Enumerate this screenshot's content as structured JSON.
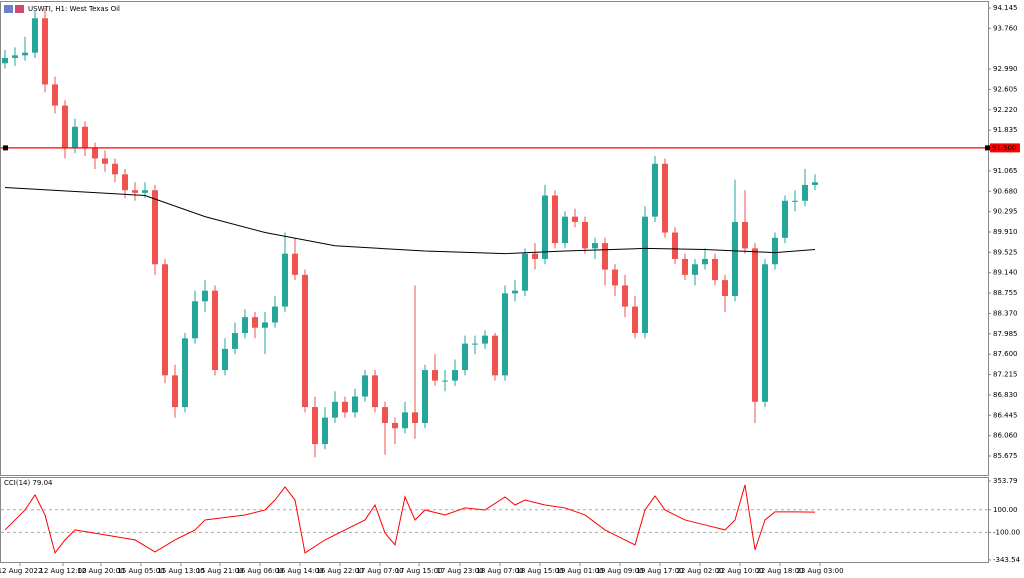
{
  "chart_data": [
    {
      "type": "candlestick",
      "title": "USWTI, H1: West Texas Oil",
      "bull_color": "#26a69a",
      "bear_color": "#ef5350",
      "candles": [
        [
          93.1,
          93.35,
          93.0,
          93.2
        ],
        [
          93.2,
          93.4,
          93.05,
          93.25
        ],
        [
          93.25,
          93.6,
          93.15,
          93.3
        ],
        [
          93.3,
          94.1,
          93.2,
          93.95
        ],
        [
          93.95,
          94.15,
          92.55,
          92.7
        ],
        [
          92.7,
          92.85,
          92.15,
          92.3
        ],
        [
          92.3,
          92.4,
          91.3,
          91.5
        ],
        [
          91.5,
          92.05,
          91.4,
          91.9
        ],
        [
          91.9,
          92.0,
          91.35,
          91.5
        ],
        [
          91.5,
          91.6,
          91.1,
          91.3
        ],
        [
          91.3,
          91.45,
          91.05,
          91.2
        ],
        [
          91.2,
          91.3,
          90.85,
          91.0
        ],
        [
          91.0,
          91.1,
          90.55,
          90.7
        ],
        [
          90.7,
          90.85,
          90.5,
          90.65
        ],
        [
          90.65,
          90.85,
          90.55,
          90.7
        ],
        [
          90.7,
          90.8,
          89.1,
          89.3
        ],
        [
          89.3,
          89.4,
          87.05,
          87.2
        ],
        [
          87.2,
          87.4,
          86.4,
          86.6
        ],
        [
          86.6,
          88.0,
          86.5,
          87.9
        ],
        [
          87.9,
          88.8,
          87.8,
          88.6
        ],
        [
          88.6,
          89.0,
          88.4,
          88.8
        ],
        [
          88.8,
          88.9,
          87.2,
          87.3
        ],
        [
          87.3,
          87.9,
          87.2,
          87.7
        ],
        [
          87.7,
          88.2,
          87.6,
          88.0
        ],
        [
          88.0,
          88.45,
          87.9,
          88.3
        ],
        [
          88.3,
          88.4,
          87.9,
          88.1
        ],
        [
          88.1,
          88.4,
          87.6,
          88.2
        ],
        [
          88.2,
          88.7,
          88.1,
          88.5
        ],
        [
          88.5,
          89.9,
          88.4,
          89.5
        ],
        [
          89.5,
          89.8,
          89.0,
          89.1
        ],
        [
          89.1,
          89.2,
          86.5,
          86.6
        ],
        [
          86.6,
          86.8,
          85.65,
          85.9
        ],
        [
          85.9,
          86.6,
          85.8,
          86.4
        ],
        [
          86.4,
          86.9,
          86.3,
          86.7
        ],
        [
          86.7,
          86.8,
          86.4,
          86.5
        ],
        [
          86.5,
          86.95,
          86.4,
          86.8
        ],
        [
          86.8,
          87.3,
          86.7,
          87.2
        ],
        [
          87.2,
          87.3,
          86.5,
          86.6
        ],
        [
          86.6,
          86.7,
          85.7,
          86.3
        ],
        [
          86.3,
          86.4,
          85.9,
          86.2
        ],
        [
          86.2,
          86.7,
          86.1,
          86.5
        ],
        [
          86.5,
          88.9,
          86.0,
          86.3
        ],
        [
          86.3,
          87.4,
          86.2,
          87.3
        ],
        [
          87.3,
          87.6,
          87.0,
          87.1
        ],
        [
          87.1,
          87.3,
          86.9,
          87.1
        ],
        [
          87.1,
          87.5,
          87.0,
          87.3
        ],
        [
          87.3,
          87.95,
          87.2,
          87.8
        ],
        [
          87.8,
          87.95,
          87.6,
          87.8
        ],
        [
          87.8,
          88.05,
          87.7,
          87.95
        ],
        [
          87.95,
          88.0,
          87.1,
          87.2
        ],
        [
          87.2,
          88.9,
          87.1,
          88.75
        ],
        [
          88.75,
          89.0,
          88.6,
          88.8
        ],
        [
          88.8,
          89.6,
          88.7,
          89.5
        ],
        [
          89.5,
          89.7,
          89.2,
          89.4
        ],
        [
          89.4,
          90.8,
          89.3,
          90.6
        ],
        [
          90.6,
          90.7,
          89.6,
          89.7
        ],
        [
          89.7,
          90.3,
          89.6,
          90.2
        ],
        [
          90.2,
          90.35,
          90.0,
          90.1
        ],
        [
          90.1,
          90.2,
          89.5,
          89.6
        ],
        [
          89.6,
          89.8,
          89.4,
          89.7
        ],
        [
          89.7,
          89.8,
          88.9,
          89.2
        ],
        [
          89.2,
          89.3,
          88.7,
          88.9
        ],
        [
          88.9,
          89.1,
          88.3,
          88.5
        ],
        [
          88.5,
          88.7,
          87.9,
          88.0
        ],
        [
          88.0,
          90.4,
          87.9,
          90.2
        ],
        [
          90.2,
          91.35,
          90.1,
          91.2
        ],
        [
          91.2,
          91.3,
          89.8,
          89.9
        ],
        [
          89.9,
          90.0,
          89.3,
          89.4
        ],
        [
          89.4,
          89.5,
          89.0,
          89.1
        ],
        [
          89.1,
          89.4,
          88.9,
          89.3
        ],
        [
          89.3,
          89.6,
          89.2,
          89.4
        ],
        [
          89.4,
          89.5,
          88.9,
          89.0
        ],
        [
          89.0,
          89.1,
          88.4,
          88.7
        ],
        [
          88.7,
          90.9,
          88.6,
          90.1
        ],
        [
          90.1,
          90.7,
          89.5,
          89.6
        ],
        [
          89.6,
          89.7,
          86.3,
          86.7
        ],
        [
          86.7,
          89.4,
          86.6,
          89.3
        ],
        [
          89.3,
          89.9,
          89.2,
          89.8
        ],
        [
          89.8,
          90.6,
          89.7,
          90.5
        ],
        [
          90.5,
          90.7,
          90.3,
          90.5
        ],
        [
          90.5,
          91.1,
          90.4,
          90.8
        ],
        [
          90.8,
          91.0,
          90.7,
          90.85
        ]
      ],
      "ma": {
        "color": "#000000",
        "x": [
          0,
          14,
          20,
          26,
          33,
          42,
          50,
          56,
          64,
          70,
          77,
          81
        ],
        "values": [
          90.75,
          90.6,
          90.2,
          89.9,
          89.65,
          89.55,
          89.5,
          89.55,
          89.6,
          89.58,
          89.52,
          89.58
        ]
      },
      "hline": {
        "value": 91.5,
        "label": "91.500",
        "color": "#ff0000"
      },
      "ylim": [
        85.316,
        94.258
      ],
      "yticks": [
        94.145,
        {
          "value": 93.76,
          "label": "93.760"
        },
        {
          "value": 92.99,
          "label": "92.990"
        },
        92.605,
        {
          "value": 92.22,
          "label": "92.220"
        },
        91.835,
        91.065,
        {
          "value": 90.68,
          "label": "90.680"
        },
        90.295,
        {
          "value": 89.91,
          "label": "89.910"
        },
        89.525,
        {
          "value": 89.14,
          "label": "89.140"
        },
        88.755,
        {
          "value": 88.37,
          "label": "88.370"
        },
        87.985,
        {
          "value": 87.6,
          "label": "87.600"
        },
        87.215,
        {
          "value": 86.83,
          "label": "86.830"
        },
        86.445,
        {
          "value": 86.06,
          "label": "86.060"
        },
        85.675
      ],
      "xticks": [
        {
          "value": 1.5,
          "label": "12 Aug 2022"
        },
        {
          "value": 5.8,
          "label": "12 Aug 12:00"
        },
        {
          "value": 9.6,
          "label": "12 Aug 20:00"
        },
        {
          "value": 13.6,
          "label": "15 Aug 05:00"
        },
        {
          "value": 17.6,
          "label": "15 Aug 13:00"
        },
        {
          "value": 21.5,
          "label": "15 Aug 21:00"
        },
        {
          "value": 25.5,
          "label": "16 Aug 06:00"
        },
        {
          "value": 29.5,
          "label": "16 Aug 14:00"
        },
        {
          "value": 33.5,
          "label": "16 Aug 22:00"
        },
        {
          "value": 37.5,
          "label": "17 Aug 07:00"
        },
        {
          "value": 41.4,
          "label": "17 Aug 15:00"
        },
        {
          "value": 45.5,
          "label": "17 Aug 23:00"
        },
        {
          "value": 49.5,
          "label": "18 Aug 07:00"
        },
        {
          "value": 53.5,
          "label": "18 Aug 15:00"
        },
        {
          "value": 57.5,
          "label": "19 Aug 01:00"
        },
        {
          "value": 61.5,
          "label": "19 Aug 09:00"
        },
        {
          "value": 65.5,
          "label": "19 Aug 17:00"
        },
        {
          "value": 69.5,
          "label": "22 Aug 02:00"
        },
        {
          "value": 73.5,
          "label": "22 Aug 10:00"
        },
        {
          "value": 77.5,
          "label": "22 Aug 18:00"
        },
        {
          "value": 81.5,
          "label": "23 Aug 03:00"
        }
      ]
    },
    {
      "type": "line",
      "title": "CCI(14) 79.04",
      "color": "#ff0000",
      "x": [
        0,
        2,
        3,
        4,
        5,
        6,
        7,
        10,
        13,
        15,
        17,
        19,
        20,
        24,
        26,
        27,
        28,
        29,
        30,
        32,
        34,
        36,
        37,
        38,
        39,
        40,
        41,
        42,
        44,
        46,
        48,
        50,
        51,
        52,
        54,
        56,
        58,
        60,
        62,
        63,
        64,
        65,
        66,
        68,
        70,
        72,
        73,
        74,
        75,
        76,
        77,
        79,
        81
      ],
      "values": [
        -78,
        98,
        231,
        54,
        -281,
        -166,
        -78,
        -122,
        -166,
        -272,
        -166,
        -78,
        10,
        54,
        98,
        186,
        301,
        186,
        -281,
        -166,
        -78,
        10,
        142,
        -105,
        -210,
        213,
        10,
        98,
        54,
        116,
        98,
        213,
        142,
        186,
        142,
        116,
        54,
        -78,
        -166,
        -210,
        98,
        222,
        98,
        10,
        -34,
        -78,
        10,
        319,
        -254,
        10,
        81,
        81,
        79.04
      ],
      "ylim": [
        -343.54,
        353.79
      ],
      "yticks": [
        353.79,
        {
          "value": 100,
          "label": "100.00"
        },
        {
          "value": -100,
          "label": "-100.00"
        },
        -343.54
      ],
      "levels": [
        {
          "value": 100,
          "label": "100.00"
        },
        {
          "value": -100,
          "label": "-100.00"
        }
      ]
    }
  ]
}
